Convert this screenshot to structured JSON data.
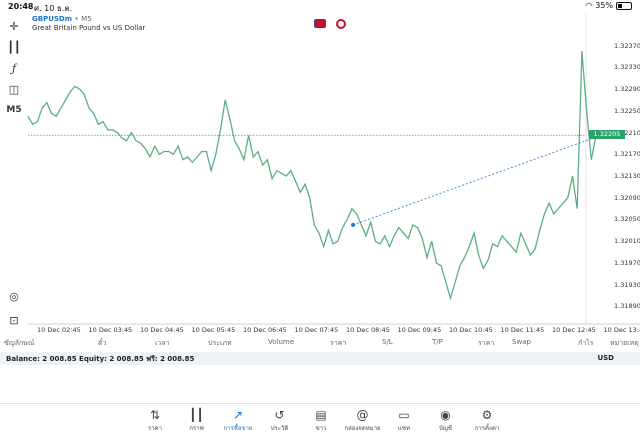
{
  "status": {
    "time": "20:48",
    "date": "ศ. 10 ธ.ค.",
    "battery": "35%",
    "battery_level": 0.35
  },
  "header": {
    "symbol": "GBPUSDm",
    "dot": "•",
    "timeframe": "M5",
    "description": "Great Britain Pound vs US Dollar"
  },
  "toolbar": {
    "crosshair_icon": "crosshair-icon",
    "candles_icon": "candles-icon",
    "indicator_icon": "function-icon",
    "objects_icon": "shapes-icon",
    "timeframe_label": "M5",
    "zoom_icon": "zoom-fit-icon",
    "export_icon": "export-icon"
  },
  "chart_data": {
    "type": "line",
    "title": "",
    "y_ticks": [
      "1.32370",
      "1.32330",
      "1.32290",
      "1.32250",
      "1.32210",
      "1.32170",
      "1.32130",
      "1.32090",
      "1.32050",
      "1.32010",
      "1.31970",
      "1.31930",
      "1.31890"
    ],
    "x_ticks": [
      "10 Dec 02:45",
      "10 Dec 03:45",
      "10 Dec 04:45",
      "10 Dec 05:45",
      "10 Dec 06:45",
      "10 Dec 07:45",
      "10 Dec 08:45",
      "10 Dec 09:45",
      "10 Dec 10:45",
      "10 Dec 11:45",
      "10 Dec 12:45",
      "10 Dec 13:4"
    ],
    "ylim": [
      1.31865,
      1.32395
    ],
    "current_price": "1.32205",
    "current_price_value": 1.32205,
    "color": "#5aaf82",
    "series": [
      {
        "values": [
          1.3224,
          1.32225,
          1.3223,
          1.32255,
          1.32265,
          1.32245,
          1.3224,
          1.32255,
          1.3227,
          1.32285,
          1.32295,
          1.3229,
          1.3228,
          1.32255,
          1.32245,
          1.32225,
          1.3223,
          1.32215,
          1.32215,
          1.3221,
          1.322,
          1.32195,
          1.3221,
          1.32195,
          1.3219,
          1.3218,
          1.32165,
          1.32185,
          1.3217,
          1.32175,
          1.32175,
          1.3217,
          1.32185,
          1.3216,
          1.32165,
          1.32155,
          1.32165,
          1.32175,
          1.32175,
          1.3214,
          1.3217,
          1.32215,
          1.3227,
          1.32235,
          1.32195,
          1.3218,
          1.3216,
          1.32205,
          1.32165,
          1.32175,
          1.3215,
          1.3216,
          1.32125,
          1.3214,
          1.32135,
          1.3213,
          1.3214,
          1.3212,
          1.321,
          1.32115,
          1.3209,
          1.3204,
          1.32025,
          1.32,
          1.3203,
          1.32005,
          1.3201,
          1.32035,
          1.3205,
          1.3207,
          1.3206,
          1.3204,
          1.3202,
          1.32045,
          1.3201,
          1.32005,
          1.3202,
          1.32,
          1.3202,
          1.32035,
          1.32025,
          1.32015,
          1.3204,
          1.32035,
          1.32015,
          1.3198,
          1.3201,
          1.3197,
          1.31965,
          1.31935,
          1.31905,
          1.31935,
          1.31965,
          1.3198,
          1.32,
          1.32025,
          1.31985,
          1.3196,
          1.31975,
          1.32005,
          1.32,
          1.3202,
          1.3201,
          1.32,
          1.3199,
          1.32025,
          1.32005,
          1.31985,
          1.31995,
          1.3203,
          1.3206,
          1.3208,
          1.3206,
          1.3207,
          1.3208,
          1.3209,
          1.3213,
          1.3207,
          1.3236,
          1.3225,
          1.3216,
          1.32205
        ]
      },
      {
        "name": "",
        "values": [
          1.3204,
          1.32205
        ]
      }
    ],
    "markers": [
      {
        "label": "entry",
        "value": 1.3204,
        "color": "#1a73c9"
      },
      {
        "label": "current",
        "value": 1.32205,
        "color": "#d9534f"
      }
    ]
  },
  "table_header": {
    "cols": [
      "ซัญลักษณ์",
      "ตั๋ว",
      "เวลา",
      "ประเภท",
      "Volume",
      "ราคา",
      "S/L",
      "T/P",
      "ราคา",
      "Swap",
      "กำไร",
      "หมายเหตุ"
    ]
  },
  "balance": {
    "text": "Balance: 2 008.85 Equity: 2 008.85 ฟรี: 2 008.85",
    "currency": "USD"
  },
  "nav": {
    "items": [
      {
        "label": "ราคา",
        "icon": "quotes-icon",
        "active": false
      },
      {
        "label": "กราฟ",
        "icon": "charts-icon",
        "active": false
      },
      {
        "label": "การซื้อขาย",
        "icon": "trade-icon",
        "active": true
      },
      {
        "label": "ประวัติ",
        "icon": "history-icon",
        "active": false
      },
      {
        "label": "ข่าว",
        "icon": "news-icon",
        "active": false
      },
      {
        "label": "กล่องจดหมาย",
        "icon": "mailbox-icon",
        "active": false
      },
      {
        "label": "แชท",
        "icon": "chat-icon",
        "active": false
      },
      {
        "label": "บัญชี",
        "icon": "account-icon",
        "active": false
      },
      {
        "label": "การตั้งค่า",
        "icon": "settings-icon",
        "active": false
      }
    ]
  }
}
